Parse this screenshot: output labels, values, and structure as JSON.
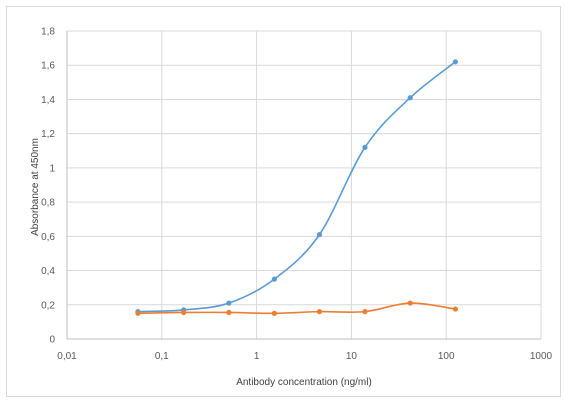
{
  "chart_data": {
    "type": "line",
    "title": "",
    "xlabel": "Antibody concentration (ng/ml)",
    "ylabel": "Absorbance at 450nm",
    "x_scale": "log",
    "xlim": [
      0.01,
      1000
    ],
    "ylim": [
      0,
      1.8
    ],
    "x_ticks": [
      0.01,
      0.1,
      1,
      10,
      100,
      1000
    ],
    "x_tick_labels": [
      "0,01",
      "0,1",
      "1",
      "10",
      "100",
      "1000"
    ],
    "y_ticks": [
      0,
      0.2,
      0.4,
      0.6,
      0.8,
      1,
      1.2,
      1.4,
      1.6,
      1.8
    ],
    "y_tick_labels": [
      "0",
      "0,2",
      "0,4",
      "0,6",
      "0,8",
      "1",
      "1,2",
      "1,4",
      "1,6",
      "1,8"
    ],
    "grid": true,
    "legend": "none",
    "smooth": true,
    "x": [
      0.056,
      0.17,
      0.51,
      1.54,
      4.6,
      13.9,
      41.7,
      125
    ],
    "series": [
      {
        "color": "#5b9bd5",
        "values": [
          0.16,
          0.17,
          0.21,
          0.35,
          0.61,
          1.12,
          1.41,
          1.62
        ]
      },
      {
        "color": "#ed7d31",
        "values": [
          0.15,
          0.155,
          0.155,
          0.15,
          0.16,
          0.16,
          0.21,
          0.175
        ]
      }
    ]
  }
}
